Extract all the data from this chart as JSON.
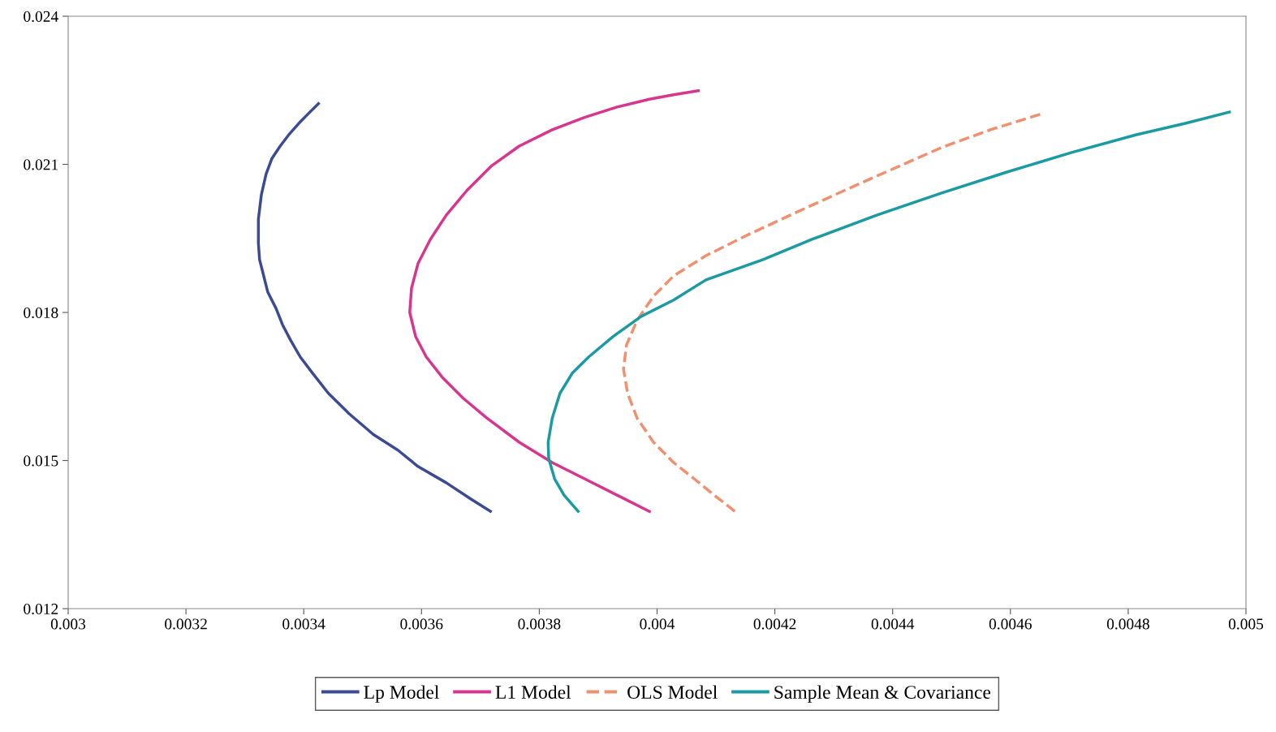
{
  "chart_data": {
    "type": "line",
    "xlim": [
      0.003,
      0.005
    ],
    "xticks": [
      0.003,
      0.0032,
      0.0034,
      0.0036,
      0.0038,
      0.004,
      0.0042,
      0.0044,
      0.0046,
      0.0048,
      0.005
    ],
    "ylim": [
      0.012,
      0.024
    ],
    "yticks": [
      0.012,
      0.015,
      0.018,
      0.021,
      0.024
    ],
    "grid": false,
    "legend": "bottom",
    "marker": "none",
    "series": [
      {
        "name": "Lp Model",
        "color": "#3b4a94",
        "line_style": "solid",
        "x": [
          0.003717,
          0.003684,
          0.003642,
          0.003594,
          0.00356,
          0.003518,
          0.003477,
          0.003442,
          0.003415,
          0.003394,
          0.003378,
          0.003364,
          0.003353,
          0.003339,
          0.003332,
          0.003325,
          0.003323,
          0.003323,
          0.003328,
          0.003336,
          0.003346,
          0.00336,
          0.003376,
          0.003394,
          0.003408,
          0.003425
        ],
        "values": [
          0.01397,
          0.01422,
          0.01455,
          0.01488,
          0.01521,
          0.01553,
          0.01595,
          0.01636,
          0.01677,
          0.0171,
          0.01743,
          0.01775,
          0.01808,
          0.01841,
          0.01874,
          0.01907,
          0.0194,
          0.01989,
          0.02038,
          0.0208,
          0.02112,
          0.02137,
          0.02162,
          0.02186,
          0.02203,
          0.02223
        ]
      },
      {
        "name": "L1 Model",
        "color": "#d8358f",
        "line_style": "solid",
        "x": [
          0.003987,
          0.003932,
          0.003877,
          0.003822,
          0.003766,
          0.003711,
          0.00367,
          0.003635,
          0.003608,
          0.00359,
          0.00358,
          0.003583,
          0.003594,
          0.003615,
          0.003642,
          0.003677,
          0.003718,
          0.003766,
          0.003822,
          0.003877,
          0.003932,
          0.003987,
          0.004028,
          0.00407
        ],
        "values": [
          0.01397,
          0.0143,
          0.01463,
          0.01496,
          0.01537,
          0.01586,
          0.01627,
          0.01669,
          0.0171,
          0.01751,
          0.018,
          0.01849,
          0.01899,
          0.01948,
          0.01997,
          0.02047,
          0.02096,
          0.02137,
          0.0217,
          0.02195,
          0.02216,
          0.02232,
          0.02241,
          0.02249
        ]
      },
      {
        "name": "OLS Model",
        "color": "#f0906e",
        "line_style": "dashed",
        "x": [
          0.004132,
          0.004097,
          0.004063,
          0.004028,
          0.003994,
          0.003966,
          0.00395,
          0.003943,
          0.003948,
          0.003966,
          0.003994,
          0.004028,
          0.004083,
          0.004152,
          0.004235,
          0.004318,
          0.004401,
          0.004483,
          0.004566,
          0.004655
        ],
        "values": [
          0.01397,
          0.0143,
          0.01463,
          0.01496,
          0.01537,
          0.01586,
          0.01636,
          0.01685,
          0.01734,
          0.01784,
          0.01833,
          0.01874,
          0.01915,
          0.01956,
          0.02002,
          0.02047,
          0.02091,
          0.02134,
          0.0217,
          0.02203
        ]
      },
      {
        "name": "Sample Mean & Covariance",
        "color": "#1a9aa2",
        "line_style": "solid",
        "x": [
          0.003866,
          0.003842,
          0.003826,
          0.003816,
          0.003815,
          0.003822,
          0.003835,
          0.003856,
          0.003884,
          0.003925,
          0.003973,
          0.004028,
          0.004083,
          0.00418,
          0.004263,
          0.004373,
          0.004483,
          0.004593,
          0.004704,
          0.004814,
          0.004897,
          0.004972
        ],
        "values": [
          0.01397,
          0.0143,
          0.01463,
          0.01504,
          0.01537,
          0.01586,
          0.01636,
          0.01677,
          0.0171,
          0.01751,
          0.01792,
          0.01825,
          0.01866,
          0.01907,
          0.01948,
          0.01997,
          0.02042,
          0.02084,
          0.02124,
          0.0216,
          0.02183,
          0.02206
        ]
      }
    ]
  }
}
